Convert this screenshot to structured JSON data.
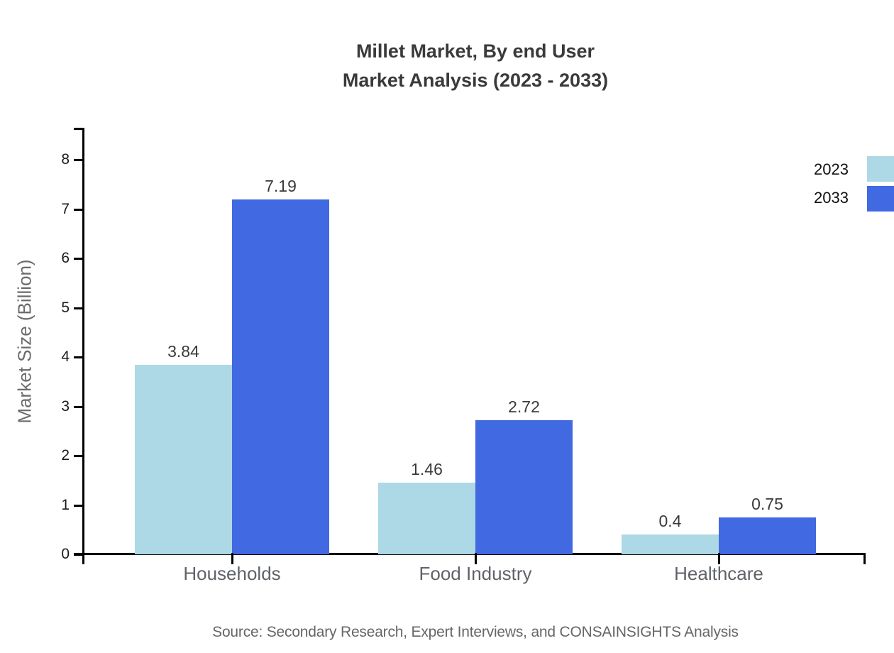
{
  "title": {
    "line1": "Millet Market, By end User",
    "line2": "Market Analysis (2023 - 2033)"
  },
  "source": "Source: Secondary Research, Expert Interviews, and CONSAINSIGHTS Analysis",
  "legend": {
    "position": "top-right",
    "items": [
      {
        "label": "2023",
        "color": "#ADD8E6"
      },
      {
        "label": "2033",
        "color": "#4169E1"
      }
    ]
  },
  "colors": {
    "series_2023": "#ADD8E6",
    "series_2033": "#4169E1",
    "axis": "#000000",
    "title_text": "#3a3a3a",
    "value_label_text": "#3a3a3a",
    "category_text": "#5f6368",
    "tick_text": "#1a1a1a",
    "y_axis_label_text": "#6b6b6b",
    "source_text": "#666666",
    "background": "#ffffff"
  },
  "chart_data": {
    "type": "bar",
    "title": "Millet Market, By end User Market Analysis (2023 - 2033)",
    "categories": [
      "Households",
      "Food Industry",
      "Healthcare"
    ],
    "series": [
      {
        "name": "2023",
        "color": "#ADD8E6",
        "values": [
          3.84,
          1.46,
          0.4
        ]
      },
      {
        "name": "2033",
        "color": "#4169E1",
        "values": [
          7.19,
          2.72,
          0.75
        ]
      }
    ],
    "value_labels": {
      "2023": [
        "3.84",
        "1.46",
        "0.4"
      ],
      "2033": [
        "7.19",
        "2.72",
        "0.75"
      ]
    },
    "xlabel": "",
    "ylabel": "Market Size (Billion)",
    "ylim": [
      0,
      8
    ],
    "yticks": [
      0,
      1,
      2,
      3,
      4,
      5,
      6,
      7,
      8
    ],
    "grid": false,
    "legend_position": "top-right"
  }
}
